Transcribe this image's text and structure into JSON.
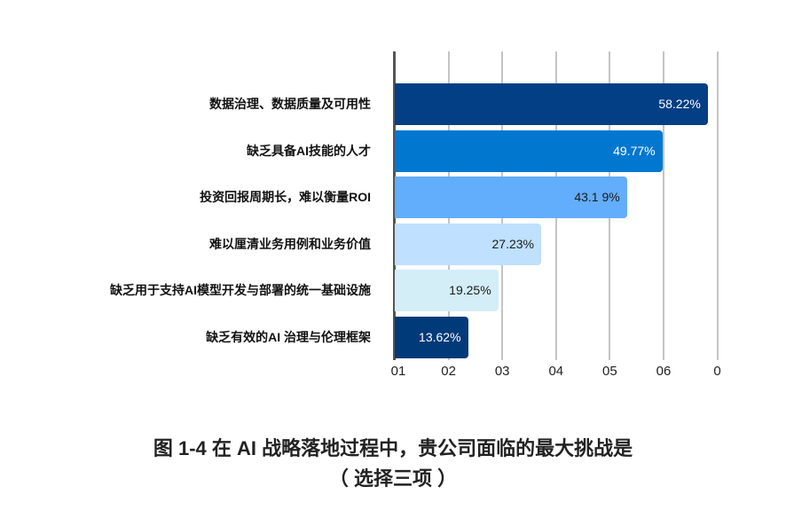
{
  "chart_data": {
    "type": "bar",
    "orientation": "horizontal",
    "title": "图 1-4 在 AI 战略落地过程中，贵公司面临的最大挑战是",
    "subtitle": "（选择三项）",
    "categories": [
      "数据治理、数据质量及可用性",
      "缺乏具备AI技能的人才",
      "投资回报周期长，难以衡量ROI",
      "难以厘清业务用例和业务价值",
      "缺乏用于支持AI模型开发与部署的统一基础设施",
      "缺乏有效的AI 治理与伦理框架"
    ],
    "values": [
      58.22,
      49.77,
      43.19,
      27.23,
      19.25,
      13.62
    ],
    "value_labels": [
      "58.22%",
      "49.77%",
      "43.1 9%",
      "27.23%",
      "19.25%",
      "13.62%"
    ],
    "bar_colors": [
      "#023f84",
      "#0277d0",
      "#62adfc",
      "#bfe0fe",
      "#d3eef7",
      "#013a78"
    ],
    "label_colors": [
      "#ffffff",
      "#ffffff",
      "#1a1a1a",
      "#1a1a1a",
      "#1a1a1a",
      "#ffffff"
    ],
    "x_tick_labels": [
      "01",
      "02",
      "03",
      "04",
      "05",
      "06",
      "0"
    ],
    "xlim": [
      0,
      60
    ],
    "xlabel": "",
    "ylabel": "",
    "grid": true,
    "legend": null
  },
  "caption": {
    "line1": "图 1-4 在 AI 战略落地过程中，贵公司面临的最大挑战是",
    "line2": "（ 选择三项 ）"
  }
}
